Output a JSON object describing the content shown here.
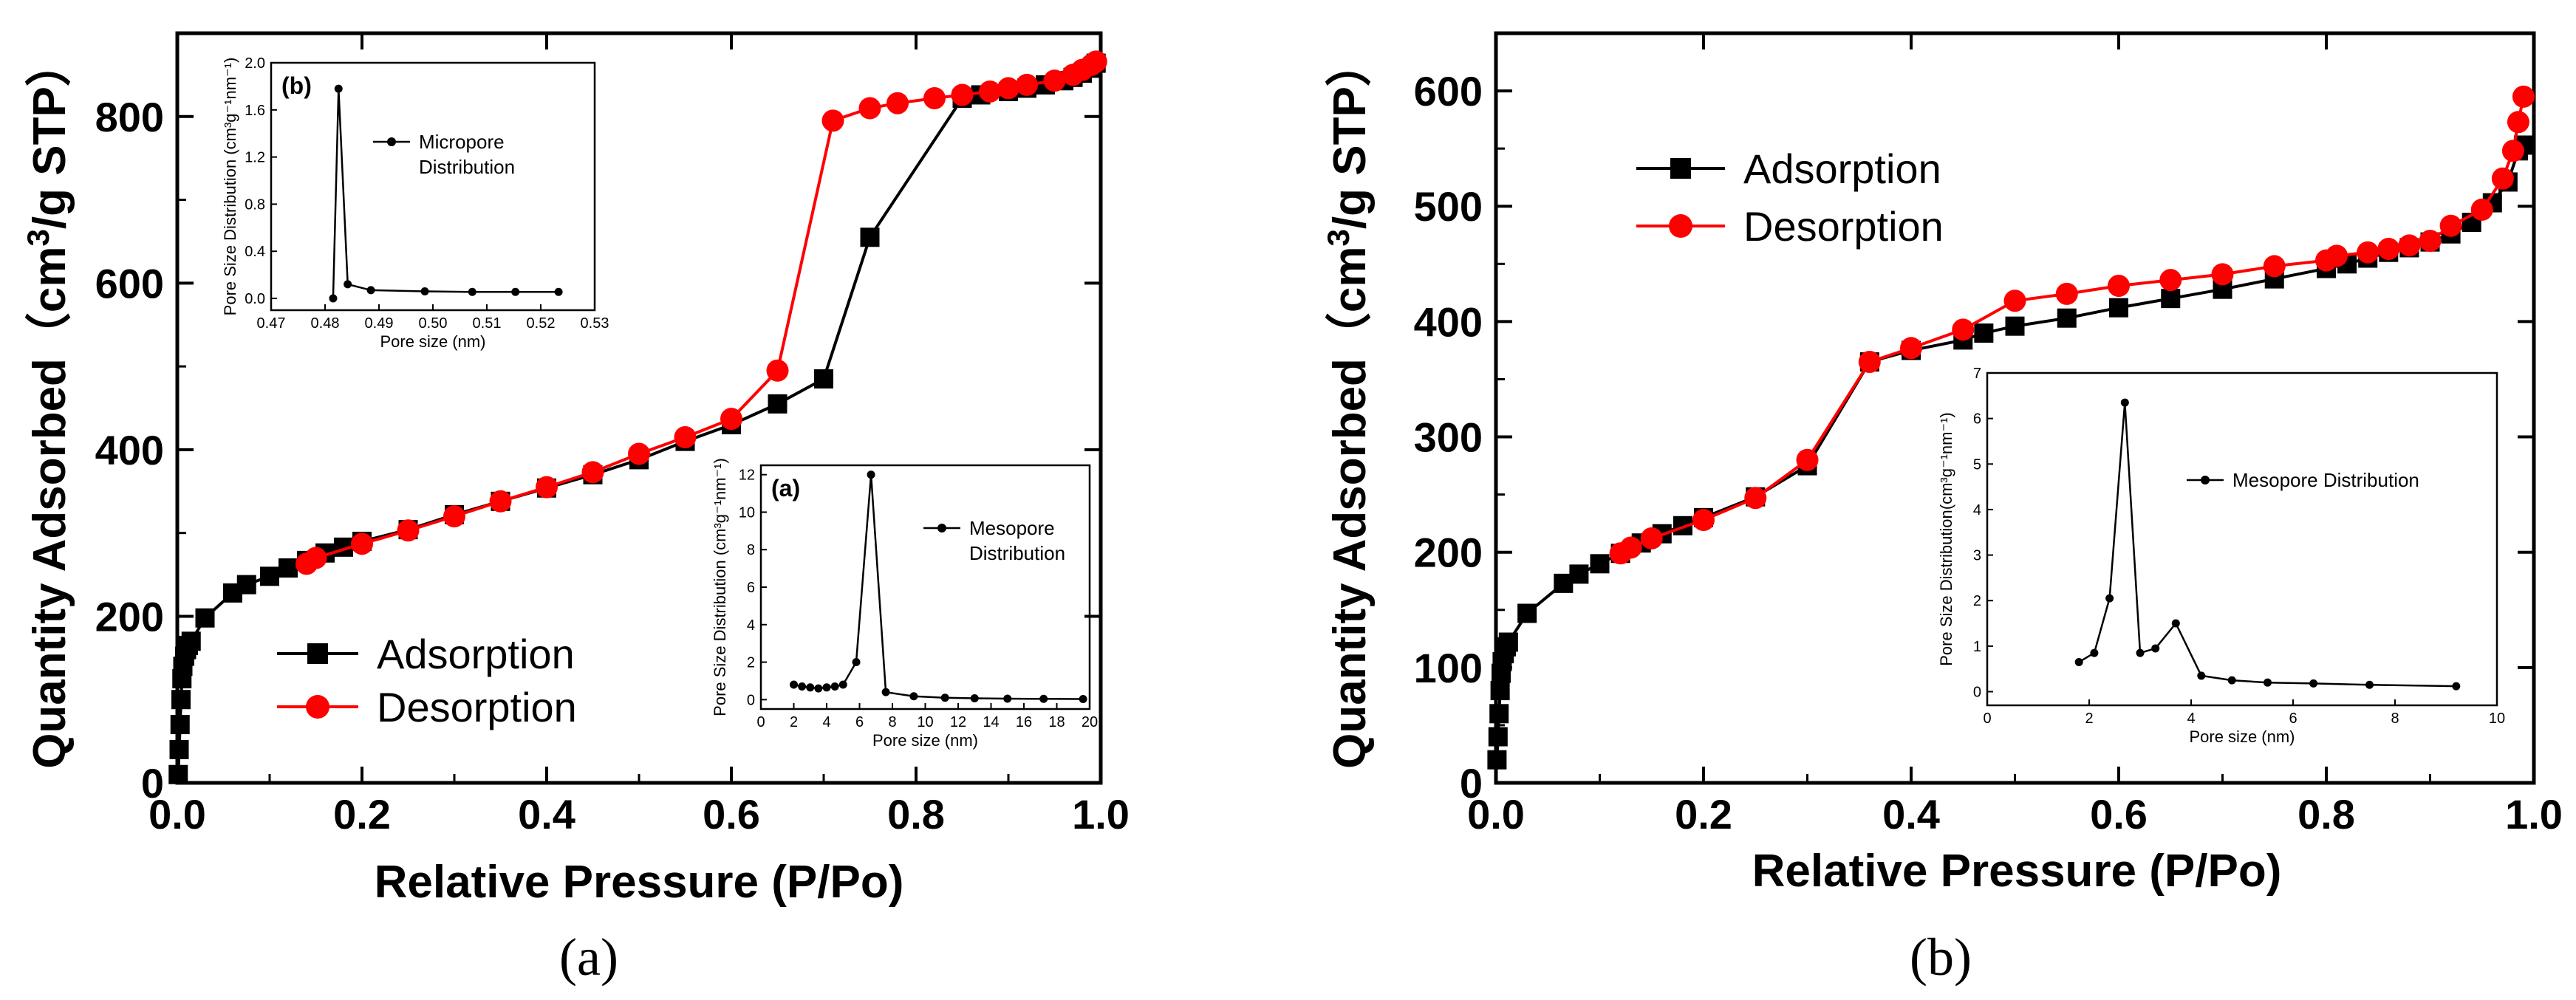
{
  "colors": {
    "adsorption": "#000000",
    "desorption": "#ff0000",
    "inset": "#000000"
  },
  "chart_data": [
    {
      "panel": "a",
      "type": "line",
      "xlabel": "Relative Pressure (P/Po)",
      "ylabel_prefix": "Quantity Adsorbed（cm",
      "ylabel_sup": "3",
      "ylabel_suffix": "/g STP）",
      "xlim": [
        0.0,
        1.0
      ],
      "ylim": [
        0,
        900
      ],
      "xticks": [
        "0.0",
        "0.2",
        "0.4",
        "0.6",
        "0.8",
        "1.0"
      ],
      "yticks": [
        "0",
        "200",
        "400",
        "600",
        "800"
      ],
      "legend": [
        "Adsorption",
        "Desorption"
      ],
      "caption": "(a)",
      "series": [
        {
          "name": "Adsorption",
          "marker": "square",
          "x": [
            0.001,
            0.002,
            0.003,
            0.004,
            0.005,
            0.006,
            0.008,
            0.01,
            0.012,
            0.015,
            0.03,
            0.06,
            0.075,
            0.1,
            0.12,
            0.14,
            0.16,
            0.18,
            0.2,
            0.25,
            0.3,
            0.35,
            0.4,
            0.45,
            0.5,
            0.55,
            0.6,
            0.65,
            0.7,
            0.75,
            0.85,
            0.87,
            0.9,
            0.92,
            0.94,
            0.96,
            0.97,
            0.98,
            0.99,
            0.995
          ],
          "y": [
            10,
            40,
            70,
            100,
            125,
            140,
            152,
            160,
            165,
            170,
            198,
            228,
            238,
            248,
            258,
            267,
            276,
            283,
            290,
            304,
            322,
            338,
            354,
            370,
            388,
            410,
            430,
            455,
            485,
            655,
            822,
            826,
            830,
            834,
            838,
            843,
            847,
            852,
            858,
            864
          ]
        },
        {
          "name": "Desorption",
          "marker": "circle",
          "x": [
            0.995,
            0.99,
            0.98,
            0.97,
            0.95,
            0.92,
            0.9,
            0.88,
            0.85,
            0.82,
            0.78,
            0.75,
            0.71,
            0.65,
            0.6,
            0.55,
            0.5,
            0.45,
            0.4,
            0.35,
            0.3,
            0.25,
            0.2,
            0.15,
            0.14
          ],
          "y": [
            866,
            862,
            856,
            850,
            843,
            838,
            834,
            830,
            826,
            822,
            816,
            810,
            795,
            495,
            437,
            415,
            395,
            373,
            355,
            338,
            320,
            303,
            287,
            270,
            263
          ]
        }
      ],
      "insets": [
        {
          "tag": "(b)",
          "type": "line",
          "legend": "Micropore Distribution",
          "legend_lines": [
            "Micropore",
            "Distribution"
          ],
          "xlabel": "Pore size (nm)",
          "ylabel": "Pore Size Distribution (cm³g⁻¹nm⁻¹)",
          "xlim": [
            0.47,
            0.53
          ],
          "ylim": [
            -0.1,
            2.0
          ],
          "xticks": [
            "0.47",
            "0.48",
            "0.49",
            "0.50",
            "0.51",
            "0.52",
            "0.53"
          ],
          "yticks": [
            "0.0",
            "0.4",
            "0.8",
            "1.2",
            "1.6",
            "2.0"
          ],
          "x": [
            0.4815,
            0.4825,
            0.4842,
            0.4885,
            0.4985,
            0.5073,
            0.5153,
            0.5233
          ],
          "y": [
            0.0,
            1.78,
            0.12,
            0.07,
            0.06,
            0.055,
            0.055,
            0.055
          ]
        },
        {
          "tag": "(a)",
          "type": "line",
          "legend": "Mesopore Distribution",
          "legend_lines": [
            "Mesopore",
            "Distribution"
          ],
          "xlabel": "Pore size (nm)",
          "ylabel": "Pore Size Distribution (cm³g⁻¹nm⁻¹)",
          "xlim": [
            0,
            20
          ],
          "ylim": [
            -0.5,
            12.5
          ],
          "xticks": [
            "0",
            "2",
            "4",
            "6",
            "8",
            "10",
            "12",
            "14",
            "16",
            "18",
            "20"
          ],
          "yticks": [
            "0",
            "2",
            "4",
            "6",
            "8",
            "10",
            "12"
          ],
          "x": [
            2.0,
            2.5,
            3.0,
            3.5,
            4.0,
            4.5,
            5.0,
            5.8,
            6.7,
            7.6,
            9.3,
            11.2,
            13.0,
            15.0,
            17.2,
            19.6
          ],
          "y": [
            0.8,
            0.7,
            0.65,
            0.6,
            0.65,
            0.7,
            0.8,
            2.0,
            12.0,
            0.4,
            0.18,
            0.1,
            0.07,
            0.05,
            0.04,
            0.03
          ]
        }
      ]
    },
    {
      "panel": "b",
      "type": "line",
      "xlabel": "Relative Pressure (P/Po)",
      "ylabel_prefix": "Quantity Adsorbed（cm",
      "ylabel_sup": "3",
      "ylabel_suffix": "/g STP）",
      "xlim": [
        0.0,
        1.0
      ],
      "ylim": [
        0,
        650
      ],
      "xticks": [
        "0.0",
        "0.2",
        "0.4",
        "0.6",
        "0.8",
        "1.0"
      ],
      "yticks": [
        "0",
        "100",
        "200",
        "300",
        "400",
        "500",
        "600"
      ],
      "legend": [
        "Adsorption",
        "Desorption"
      ],
      "caption": "(b)",
      "series": [
        {
          "name": "Adsorption",
          "marker": "square",
          "x": [
            0.001,
            0.002,
            0.003,
            0.004,
            0.005,
            0.006,
            0.008,
            0.01,
            0.012,
            0.03,
            0.065,
            0.08,
            0.1,
            0.12,
            0.14,
            0.16,
            0.18,
            0.2,
            0.25,
            0.3,
            0.36,
            0.4,
            0.45,
            0.47,
            0.5,
            0.55,
            0.6,
            0.65,
            0.7,
            0.75,
            0.8,
            0.82,
            0.84,
            0.86,
            0.88,
            0.9,
            0.92,
            0.94,
            0.96,
            0.975,
            0.985,
            0.99
          ],
          "y": [
            20,
            40,
            60,
            80,
            95,
            105,
            112,
            118,
            122,
            147,
            173,
            181,
            190,
            199,
            208,
            216,
            223,
            230,
            248,
            275,
            365,
            375,
            384,
            390,
            396,
            403,
            412,
            420,
            428,
            437,
            446,
            450,
            455,
            460,
            464,
            469,
            476,
            486,
            503,
            521,
            548,
            553
          ]
        },
        {
          "name": "Desorption",
          "marker": "circle",
          "x": [
            0.99,
            0.985,
            0.98,
            0.97,
            0.95,
            0.92,
            0.9,
            0.88,
            0.86,
            0.84,
            0.81,
            0.8,
            0.75,
            0.7,
            0.65,
            0.6,
            0.55,
            0.5,
            0.45,
            0.4,
            0.36,
            0.3,
            0.25,
            0.2,
            0.15,
            0.13,
            0.12
          ],
          "y": [
            595,
            573,
            548,
            524,
            497,
            483,
            470,
            466,
            463,
            460,
            457,
            453,
            448,
            441,
            436,
            431,
            424,
            418,
            393,
            377,
            365,
            280,
            247,
            228,
            212,
            204,
            199
          ]
        }
      ],
      "insets": [
        {
          "tag": "",
          "type": "line",
          "legend": "Mesopore Distribution",
          "legend_lines": [
            "Mesopore Distribution"
          ],
          "xlabel": "Pore size (nm)",
          "ylabel": "Pore Size Distribution(cm³g⁻¹nm⁻¹)",
          "xlim": [
            0,
            10
          ],
          "ylim": [
            -0.3,
            7
          ],
          "xticks": [
            "0",
            "2",
            "4",
            "6",
            "8",
            "10"
          ],
          "yticks": [
            "0",
            "1",
            "2",
            "3",
            "4",
            "5",
            "6",
            "7"
          ],
          "x": [
            1.8,
            2.1,
            2.4,
            2.7,
            3.0,
            3.3,
            3.7,
            4.2,
            4.8,
            5.5,
            6.4,
            7.5,
            9.2
          ],
          "y": [
            0.65,
            0.85,
            2.05,
            6.35,
            0.85,
            0.95,
            1.5,
            0.35,
            0.25,
            0.2,
            0.18,
            0.15,
            0.12
          ]
        }
      ]
    }
  ]
}
